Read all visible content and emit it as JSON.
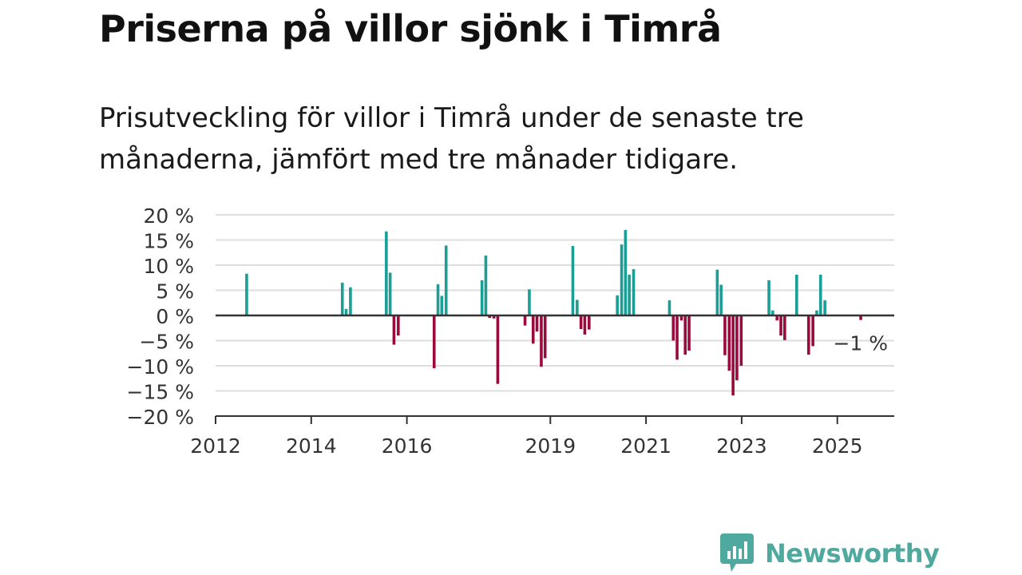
{
  "title": "Priserna på villor sjönk i Timrå",
  "subtitle": "Prisutveckling för villor i Timrå under de senaste tre månaderna, jämfört med tre månader tidigare.",
  "brand": {
    "name": "Newsworthy",
    "icon": "newsworthy-chart-bubble-icon",
    "color": "#4fa99e"
  },
  "colors": {
    "positive": "#1a9e95",
    "negative": "#9b0a3c",
    "grid": "#dddddd",
    "axis": "#333333"
  },
  "chart_data": {
    "type": "bar",
    "ylim": [
      -20,
      20
    ],
    "yticks": [
      20,
      15,
      10,
      5,
      0,
      -5,
      -10,
      -15,
      -20
    ],
    "ytick_labels": [
      "20 %",
      "15 %",
      "10 %",
      "5 %",
      "0 %",
      "−5 %",
      "−10 %",
      "−15 %",
      "−20 %"
    ],
    "xlim": [
      2012,
      2026.2
    ],
    "xticks": [
      2012,
      2014,
      2016,
      2019,
      2021,
      2023,
      2025
    ],
    "xtick_labels": [
      "2012",
      "2014",
      "2016",
      "2019",
      "2021",
      "2023",
      "2025"
    ],
    "grid": true,
    "annotation": {
      "text": "−1 %",
      "x": 2025.5,
      "y": -1
    },
    "bars": [
      {
        "x": 2012.65,
        "y": 8.3
      },
      {
        "x": 2014.65,
        "y": 6.5
      },
      {
        "x": 2014.73,
        "y": 1.3
      },
      {
        "x": 2014.82,
        "y": 5.6
      },
      {
        "x": 2015.57,
        "y": 16.7
      },
      {
        "x": 2015.65,
        "y": 8.5
      },
      {
        "x": 2015.73,
        "y": -5.8
      },
      {
        "x": 2015.82,
        "y": -4.0
      },
      {
        "x": 2016.57,
        "y": -10.5
      },
      {
        "x": 2016.65,
        "y": 6.2
      },
      {
        "x": 2016.73,
        "y": 3.9
      },
      {
        "x": 2016.82,
        "y": 13.9
      },
      {
        "x": 2017.57,
        "y": 7.0
      },
      {
        "x": 2017.65,
        "y": 11.9
      },
      {
        "x": 2017.73,
        "y": -0.5
      },
      {
        "x": 2017.82,
        "y": -0.6
      },
      {
        "x": 2017.9,
        "y": -13.6
      },
      {
        "x": 2018.47,
        "y": -2.0
      },
      {
        "x": 2018.56,
        "y": 5.2
      },
      {
        "x": 2018.64,
        "y": -5.6
      },
      {
        "x": 2018.72,
        "y": -3.2
      },
      {
        "x": 2018.81,
        "y": -10.2
      },
      {
        "x": 2018.89,
        "y": -8.5
      },
      {
        "x": 2019.47,
        "y": 13.8
      },
      {
        "x": 2019.56,
        "y": 3.1
      },
      {
        "x": 2019.64,
        "y": -2.7
      },
      {
        "x": 2019.72,
        "y": -3.8
      },
      {
        "x": 2019.81,
        "y": -2.8
      },
      {
        "x": 2020.4,
        "y": 4.0
      },
      {
        "x": 2020.49,
        "y": 14.1
      },
      {
        "x": 2020.57,
        "y": 17.0
      },
      {
        "x": 2020.65,
        "y": 8.1
      },
      {
        "x": 2020.74,
        "y": 9.2
      },
      {
        "x": 2021.49,
        "y": 3.0
      },
      {
        "x": 2021.57,
        "y": -5.0
      },
      {
        "x": 2021.65,
        "y": -8.8
      },
      {
        "x": 2021.74,
        "y": -1.0
      },
      {
        "x": 2021.82,
        "y": -7.8
      },
      {
        "x": 2021.9,
        "y": -7.0
      },
      {
        "x": 2022.49,
        "y": 9.1
      },
      {
        "x": 2022.57,
        "y": 6.1
      },
      {
        "x": 2022.65,
        "y": -7.9
      },
      {
        "x": 2022.74,
        "y": -11.0
      },
      {
        "x": 2022.82,
        "y": -15.9
      },
      {
        "x": 2022.9,
        "y": -12.9
      },
      {
        "x": 2022.99,
        "y": -10.0
      },
      {
        "x": 2023.57,
        "y": 7.0
      },
      {
        "x": 2023.65,
        "y": 1.0
      },
      {
        "x": 2023.74,
        "y": -1.0
      },
      {
        "x": 2023.82,
        "y": -4.0
      },
      {
        "x": 2023.9,
        "y": -4.9
      },
      {
        "x": 2024.15,
        "y": 8.1
      },
      {
        "x": 2024.4,
        "y": -7.8
      },
      {
        "x": 2024.49,
        "y": -6.1
      },
      {
        "x": 2024.57,
        "y": 1.0
      },
      {
        "x": 2024.65,
        "y": 8.1
      },
      {
        "x": 2024.74,
        "y": 3.0
      },
      {
        "x": 2025.49,
        "y": -0.9
      }
    ]
  }
}
